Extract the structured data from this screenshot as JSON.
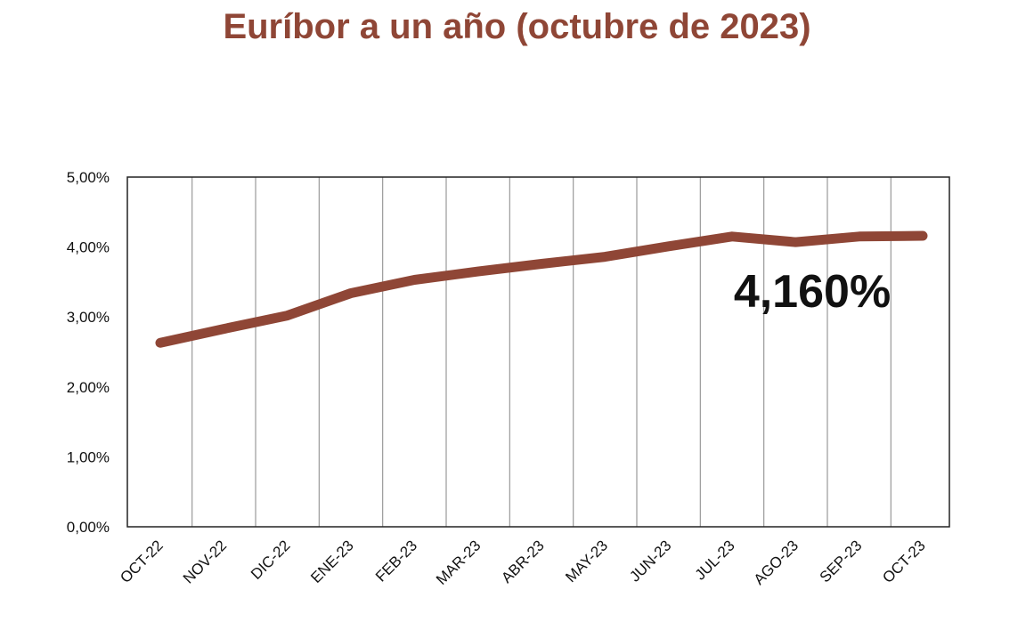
{
  "colors": {
    "accent": "#8f4636",
    "grid": "#9a9a9a",
    "frame": "#222222"
  },
  "chart_data": {
    "type": "line",
    "title": "Euríbor a un año (octubre de 2023)",
    "xlabel": "",
    "ylabel": "",
    "categories": [
      "OCT-22",
      "NOV-22",
      "DIC-22",
      "ENE-23",
      "FEB-23",
      "MAR-23",
      "ABR-23",
      "MAY-23",
      "JUN-23",
      "JUL-23",
      "AGO-23",
      "SEP-23",
      "OCT-23"
    ],
    "series": [
      {
        "values": [
          2.63,
          2.83,
          3.02,
          3.34,
          3.53,
          3.65,
          3.76,
          3.86,
          4.01,
          4.15,
          4.07,
          4.15,
          4.16
        ]
      }
    ],
    "ylim": [
      0,
      5
    ],
    "yticks": [
      "0,00%",
      "1,00%",
      "2,00%",
      "3,00%",
      "4,00%",
      "5,00%"
    ],
    "grid": "vertical",
    "annotation": "4,160%"
  }
}
